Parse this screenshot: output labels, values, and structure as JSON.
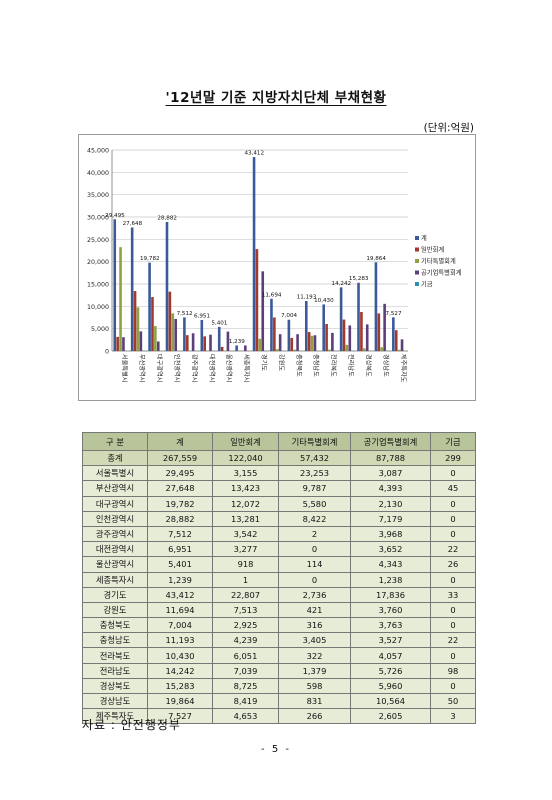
{
  "title": "'12년말 기준 지방자치단체 부채현황",
  "unit": "(단위:억원)",
  "source": "자료 : 안전행정부",
  "page_number": "- 5 -",
  "table": {
    "headers": [
      "구 분",
      "계",
      "일반회계",
      "기타특별회계",
      "공기업특별회계",
      "기금"
    ],
    "rows": [
      [
        "총계",
        "267,559",
        "122,040",
        "57,432",
        "87,788",
        "299"
      ],
      [
        "서울특별시",
        "29,495",
        "3,155",
        "23,253",
        "3,087",
        "0"
      ],
      [
        "부산광역시",
        "27,648",
        "13,423",
        "9,787",
        "4,393",
        "45"
      ],
      [
        "대구광역시",
        "19,782",
        "12,072",
        "5,580",
        "2,130",
        "0"
      ],
      [
        "인천광역시",
        "28,882",
        "13,281",
        "8,422",
        "7,179",
        "0"
      ],
      [
        "광주광역시",
        "7,512",
        "3,542",
        "2",
        "3,968",
        "0"
      ],
      [
        "대전광역시",
        "6,951",
        "3,277",
        "0",
        "3,652",
        "22"
      ],
      [
        "울산광역시",
        "5,401",
        "918",
        "114",
        "4,343",
        "26"
      ],
      [
        "세종특자시",
        "1,239",
        "1",
        "0",
        "1,238",
        "0"
      ],
      [
        "경기도",
        "43,412",
        "22,807",
        "2,736",
        "17,836",
        "33"
      ],
      [
        "강원도",
        "11,694",
        "7,513",
        "421",
        "3,760",
        "0"
      ],
      [
        "충청북도",
        "7,004",
        "2,925",
        "316",
        "3,763",
        "0"
      ],
      [
        "충청남도",
        "11,193",
        "4,239",
        "3,405",
        "3,527",
        "22"
      ],
      [
        "전라북도",
        "10,430",
        "6,051",
        "322",
        "4,057",
        "0"
      ],
      [
        "전라남도",
        "14,242",
        "7,039",
        "1,379",
        "5,726",
        "98"
      ],
      [
        "경상북도",
        "15,283",
        "8,725",
        "598",
        "5,960",
        "0"
      ],
      [
        "경상남도",
        "19,864",
        "8,419",
        "831",
        "10,564",
        "50"
      ],
      [
        "제주특자도",
        "7,527",
        "4,653",
        "266",
        "2,605",
        "3"
      ]
    ]
  },
  "chart_data": {
    "type": "bar",
    "categories": [
      "서울특별시",
      "부산광역시",
      "대구광역시",
      "인천광역시",
      "광주광역시",
      "대전광역시",
      "울산광역시",
      "세종특자시",
      "경기도",
      "강원도",
      "충청북도",
      "충청남도",
      "전라북도",
      "전라남도",
      "경상북도",
      "경상남도",
      "제주특자도"
    ],
    "series": [
      {
        "name": "계",
        "color": "#3b5a9a",
        "values": [
          29495,
          27648,
          19782,
          28882,
          7512,
          6951,
          5401,
          1239,
          43412,
          11694,
          7004,
          11193,
          10430,
          14242,
          15283,
          19864,
          7527
        ]
      },
      {
        "name": "일반회계",
        "color": "#a03a2c",
        "values": [
          3155,
          13423,
          12072,
          13281,
          3542,
          3277,
          918,
          1,
          22807,
          7513,
          2925,
          4239,
          6051,
          7039,
          8725,
          8419,
          4653
        ]
      },
      {
        "name": "기타특별회계",
        "color": "#8ea244",
        "values": [
          23253,
          9787,
          5580,
          8422,
          2,
          0,
          114,
          0,
          2736,
          421,
          316,
          3405,
          322,
          1379,
          598,
          831,
          266
        ]
      },
      {
        "name": "공기업특별회계",
        "color": "#5a3f7a",
        "values": [
          3087,
          4393,
          2130,
          7179,
          3968,
          3652,
          4343,
          1238,
          17836,
          3760,
          3763,
          3527,
          4057,
          5726,
          5960,
          10564,
          2605
        ]
      },
      {
        "name": "기금",
        "color": "#2e8fb0",
        "values": [
          0,
          45,
          0,
          0,
          0,
          22,
          26,
          0,
          33,
          0,
          0,
          22,
          0,
          98,
          0,
          50,
          3
        ]
      }
    ],
    "data_labels": [
      "29,495",
      "27,648",
      "19,782",
      "28,882",
      "7,512",
      "6,951",
      "5,401",
      "1,239",
      "43,412",
      "11,694",
      "7,004",
      "11,193",
      "10,430",
      "14,242",
      "15,283",
      "19,864",
      "7,527"
    ],
    "yticks": [
      "0",
      "5,000",
      "10,000",
      "15,000",
      "20,000",
      "25,000",
      "30,000",
      "35,000",
      "40,000",
      "45,000"
    ],
    "ylim": [
      0,
      45000
    ],
    "grid": true,
    "legend_position": "right"
  }
}
